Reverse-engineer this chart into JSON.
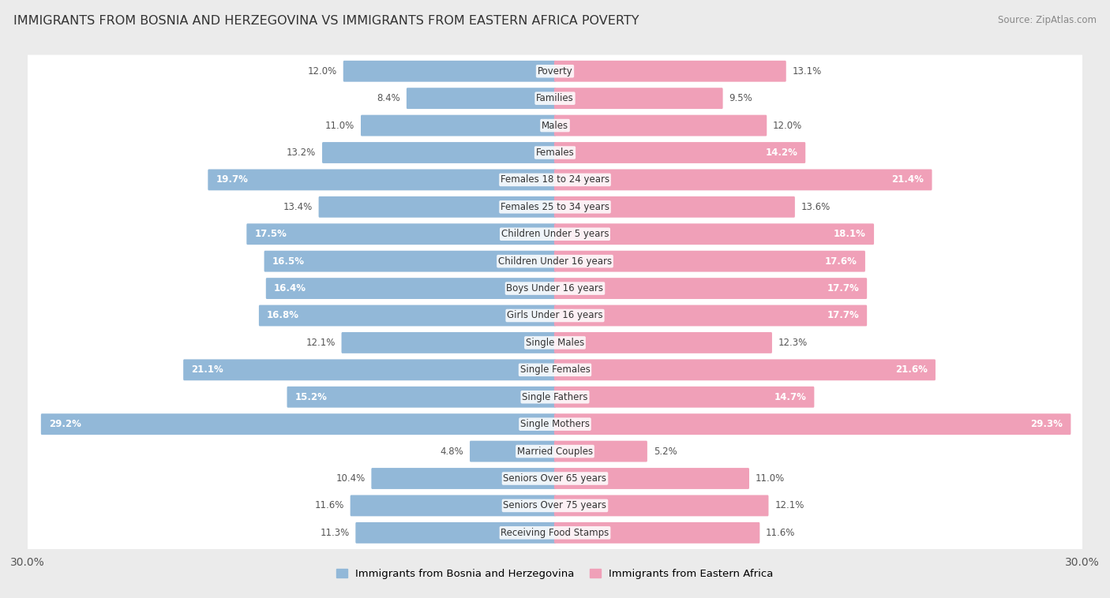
{
  "title": "IMMIGRANTS FROM BOSNIA AND HERZEGOVINA VS IMMIGRANTS FROM EASTERN AFRICA POVERTY",
  "source": "Source: ZipAtlas.com",
  "categories": [
    "Poverty",
    "Families",
    "Males",
    "Females",
    "Females 18 to 24 years",
    "Females 25 to 34 years",
    "Children Under 5 years",
    "Children Under 16 years",
    "Boys Under 16 years",
    "Girls Under 16 years",
    "Single Males",
    "Single Females",
    "Single Fathers",
    "Single Mothers",
    "Married Couples",
    "Seniors Over 65 years",
    "Seniors Over 75 years",
    "Receiving Food Stamps"
  ],
  "left_values": [
    12.0,
    8.4,
    11.0,
    13.2,
    19.7,
    13.4,
    17.5,
    16.5,
    16.4,
    16.8,
    12.1,
    21.1,
    15.2,
    29.2,
    4.8,
    10.4,
    11.6,
    11.3
  ],
  "right_values": [
    13.1,
    9.5,
    12.0,
    14.2,
    21.4,
    13.6,
    18.1,
    17.6,
    17.7,
    17.7,
    12.3,
    21.6,
    14.7,
    29.3,
    5.2,
    11.0,
    12.1,
    11.6
  ],
  "left_color": "#92b8d8",
  "right_color": "#f0a0b8",
  "label_left": "Immigrants from Bosnia and Herzegovina",
  "label_right": "Immigrants from Eastern Africa",
  "max_val": 30.0,
  "background_color": "#ebebeb",
  "bar_bg_color": "#ffffff",
  "row_bg_even": "#f7f7f7",
  "row_bg_odd": "#ffffff"
}
